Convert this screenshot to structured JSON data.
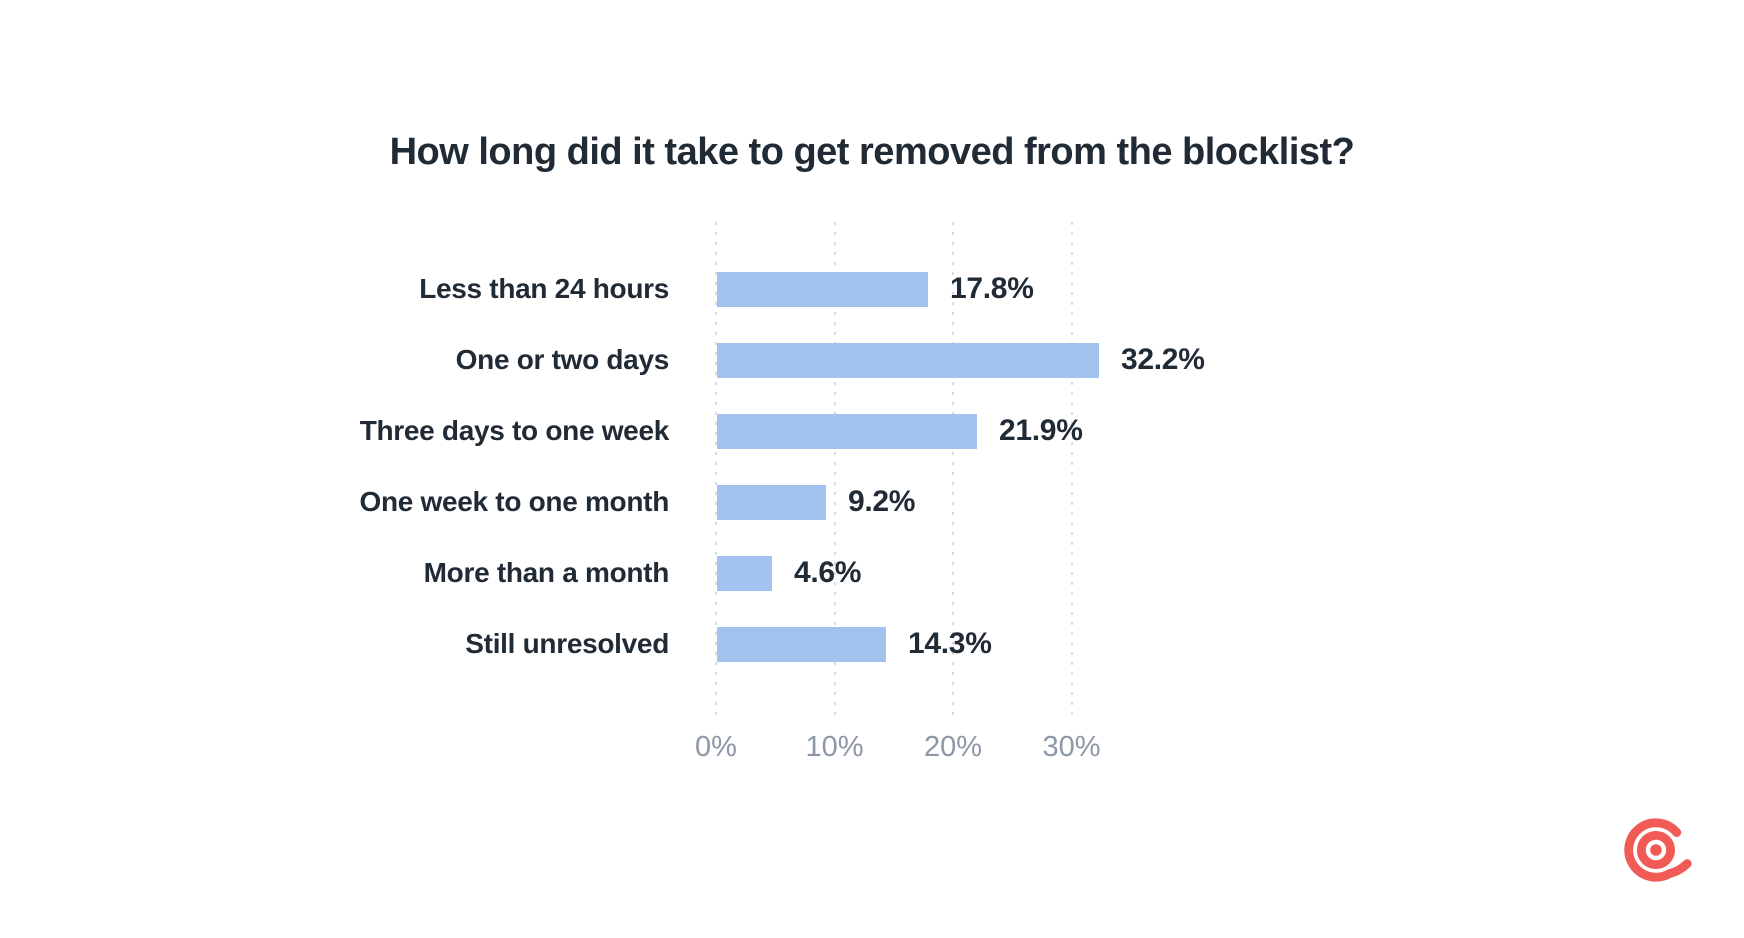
{
  "page": {
    "background_color": "#ffffff"
  },
  "chart_data": {
    "type": "bar",
    "orientation": "horizontal",
    "title": "How long did it take to get removed from the blocklist?",
    "categories": [
      "Less than 24 hours",
      "One or two days",
      "Three days to one week",
      "One week to one month",
      "More than a month",
      "Still unresolved"
    ],
    "values": [
      17.8,
      32.2,
      21.9,
      9.2,
      4.6,
      14.3
    ],
    "value_labels": [
      "17.8%",
      "32.2%",
      "21.9%",
      "9.2%",
      "4.6%",
      "14.3%"
    ],
    "xlabel": "",
    "ylabel": "",
    "x_axis": {
      "ticks": [
        0,
        10,
        20,
        30
      ],
      "tick_labels": [
        "0%",
        "10%",
        "20%",
        "30%"
      ],
      "range": [
        0,
        35
      ]
    },
    "grid": "vertical-dotted",
    "legend": "none",
    "bar_color": "#A2C2F0",
    "text_color": "#212B36",
    "axis_label_color": "#8D98A6",
    "gridline_color": "#D9DCE0"
  },
  "branding": {
    "logo_name": "at-symbol-bullseye-logo",
    "color": "#F15B55"
  }
}
